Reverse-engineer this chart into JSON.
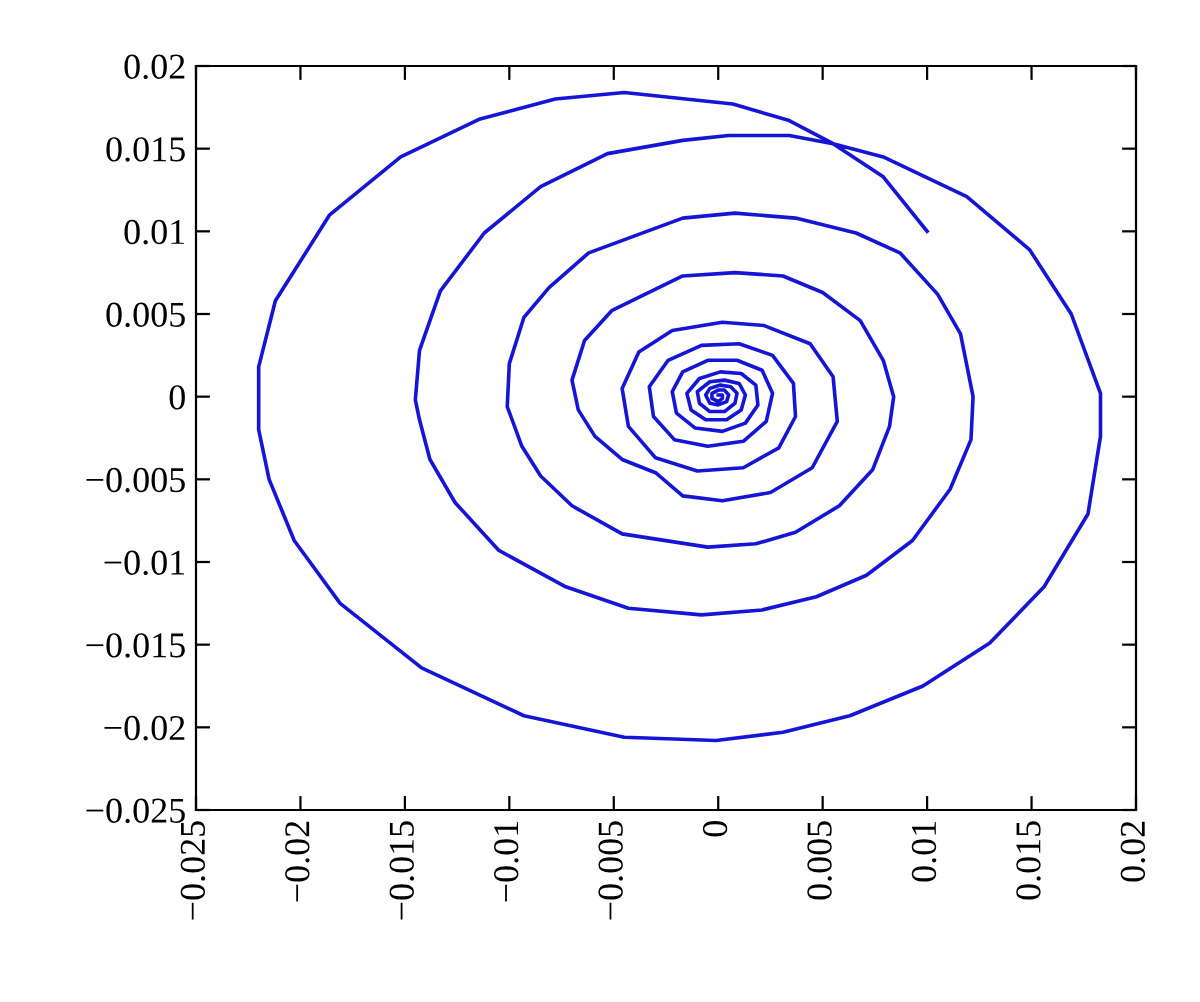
{
  "chart_data": {
    "type": "line",
    "xlim": [
      -0.025,
      0.02
    ],
    "ylim": [
      -0.025,
      0.02
    ],
    "xticks": [
      {
        "value": -0.025,
        "label": "−0.025"
      },
      {
        "value": -0.02,
        "label": "−0.02"
      },
      {
        "value": -0.015,
        "label": "−0.015"
      },
      {
        "value": -0.01,
        "label": "−0.01"
      },
      {
        "value": -0.005,
        "label": "−0.005"
      },
      0,
      0.005,
      0.01,
      0.015,
      0.02
    ],
    "yticks": [
      {
        "value": -0.025,
        "label": "−0.025"
      },
      {
        "value": -0.02,
        "label": "−0.02"
      },
      {
        "value": -0.015,
        "label": "−0.015"
      },
      {
        "value": -0.01,
        "label": "−0.01"
      },
      {
        "value": -0.005,
        "label": "−0.005"
      },
      0,
      0.005,
      0.01,
      0.015,
      0.02
    ],
    "grid": false,
    "marker": "none",
    "line_style": "solid",
    "series": [
      {
        "color": "#1515d5",
        "x": [
          0.01,
          0.0079,
          0.0055,
          0.0034,
          0.0007,
          -0.0045,
          -0.0078,
          -0.0114,
          -0.0152,
          -0.0186,
          -0.0212,
          -0.022,
          -0.022,
          -0.0215,
          -0.0203,
          -0.0181,
          -0.0142,
          -0.0093,
          -0.0045,
          -0.0001,
          0.0031,
          0.0063,
          0.0098,
          0.013,
          0.0156,
          0.0177,
          0.0183,
          0.0183,
          0.0169,
          0.0149,
          0.0119,
          0.0079,
          0.0055,
          0.0034,
          0.0005,
          -0.0017,
          -0.0053,
          -0.0085,
          -0.0112,
          -0.0133,
          -0.0143,
          -0.0145,
          -0.0143,
          -0.0138,
          -0.0126,
          -0.0105,
          -0.0073,
          -0.0043,
          -0.0008,
          0.0021,
          0.0047,
          0.0071,
          0.0093,
          0.0111,
          0.0121,
          0.0122,
          0.0116,
          0.0105,
          0.0087,
          0.0066,
          0.0037,
          0.0008,
          -0.0017,
          -0.0062,
          -0.0081,
          -0.0093,
          -0.01,
          -0.0101,
          -0.0094,
          -0.0085,
          -0.007,
          -0.0046,
          -0.0005,
          0.0018,
          0.0037,
          0.0058,
          0.0074,
          0.0082,
          0.0084,
          0.0079,
          0.0068,
          0.005,
          0.0031,
          0.0008,
          -0.0017,
          -0.0051,
          -0.0064,
          -0.007,
          -0.0067,
          -0.0059,
          -0.0046,
          -0.003,
          -0.0017,
          0.0002,
          0.0025,
          0.0045,
          0.0057,
          0.0055,
          0.0044,
          0.0022,
          0.0002,
          -0.0022,
          -0.0038,
          -0.0046,
          -0.0043,
          -0.003,
          -0.001,
          0.0012,
          0.0029,
          0.0037,
          0.0036,
          0.0026,
          0.001,
          -0.0008,
          -0.0024,
          -0.0033,
          -0.0031,
          -0.0021,
          -0.0005,
          0.0012,
          0.0023,
          0.0026,
          0.0021,
          0.0009,
          -0.0005,
          -0.0017,
          -0.0022,
          -0.002,
          -0.0011,
          0.0002,
          0.0013,
          0.0019,
          0.0018,
          0.0011,
          0.0001,
          -0.0009,
          -0.0015,
          -0.0013,
          -0.0006,
          0.0004,
          0.0011,
          0.0013,
          0.001,
          0.0003,
          -0.0004,
          -0.001,
          -0.0009,
          -0.0004,
          0.0003,
          0.0008,
          0.0009,
          0.0006,
          0.0001,
          -0.0004,
          -0.0006,
          -0.0004,
          0,
          0.0004,
          0.0005,
          0.0003,
          0,
          -0.0003,
          -0.0003,
          0,
          0.0002,
          0.0002,
          0
        ],
        "values": [
          0.01,
          0.0133,
          0.0153,
          0.0167,
          0.0177,
          0.0184,
          0.018,
          0.0168,
          0.0145,
          0.011,
          0.0058,
          0.0018,
          -0.002,
          -0.005,
          -0.0087,
          -0.0125,
          -0.0164,
          -0.0193,
          -0.0206,
          -0.0208,
          -0.0203,
          -0.0193,
          -0.0175,
          -0.0149,
          -0.0115,
          -0.0071,
          -0.0024,
          0.0002,
          0.005,
          0.0089,
          0.0121,
          0.0145,
          0.0153,
          0.0158,
          0.0158,
          0.0155,
          0.0147,
          0.0127,
          0.0099,
          0.0064,
          0.0028,
          -0.0002,
          -0.0014,
          -0.0038,
          -0.0064,
          -0.0093,
          -0.0115,
          -0.0128,
          -0.0132,
          -0.0129,
          -0.0121,
          -0.0108,
          -0.0087,
          -0.0056,
          -0.0026,
          0,
          0.0038,
          0.0062,
          0.0087,
          0.0099,
          0.0108,
          0.0111,
          0.0108,
          0.0087,
          0.0066,
          0.0048,
          0.002,
          -0.0006,
          -0.003,
          -0.0048,
          -0.0066,
          -0.0083,
          -0.0091,
          -0.0089,
          -0.0082,
          -0.0066,
          -0.0044,
          -0.0018,
          0,
          0.0022,
          0.0046,
          0.0063,
          0.0073,
          0.0075,
          0.0073,
          0.0052,
          0.0034,
          0.001,
          -0.0008,
          -0.0024,
          -0.0038,
          -0.0046,
          -0.006,
          -0.0063,
          -0.0058,
          -0.0043,
          -0.0015,
          0.0012,
          0.0032,
          0.0043,
          0.0045,
          0.004,
          0.0027,
          0.0005,
          -0.0018,
          -0.0037,
          -0.0045,
          -0.0043,
          -0.0031,
          -0.0012,
          0.0008,
          0.0025,
          0.0032,
          0.0031,
          0.0022,
          0.0006,
          -0.0012,
          -0.0026,
          -0.003,
          -0.0027,
          -0.0015,
          0.0002,
          0.0016,
          0.0022,
          0.0022,
          0.0015,
          0.0003,
          -0.001,
          -0.0019,
          -0.0021,
          -0.0016,
          -0.0005,
          0.0007,
          0.0014,
          0.0015,
          0.0011,
          0.0002,
          -0.0008,
          -0.0014,
          -0.0014,
          -0.0008,
          0.0001,
          0.0008,
          0.001,
          0.0009,
          0.0003,
          -0.0004,
          -0.0009,
          -0.0009,
          -0.0004,
          0.0002,
          0.0006,
          0.0007,
          0.0005,
          0.0001,
          -0.0004,
          -0.0005,
          -0.0003,
          0.0001,
          0.0004,
          0.0004,
          0.0002,
          -0.0001,
          -0.0003,
          -0.0001,
          0.0001,
          0.0001
        ]
      }
    ]
  }
}
